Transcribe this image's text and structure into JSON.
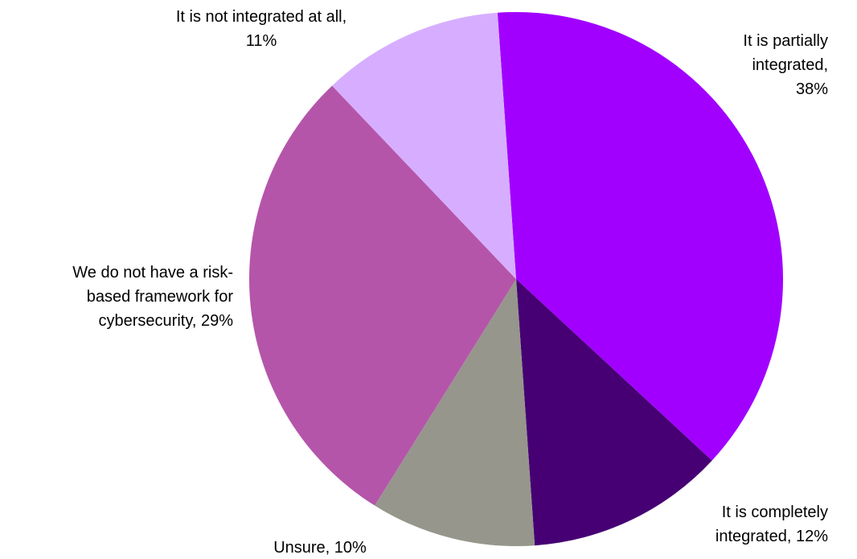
{
  "chart_data": {
    "type": "pie",
    "title": "",
    "slices": [
      {
        "label": "It is partially integrated",
        "value": 38,
        "color": "#A100FF"
      },
      {
        "label": "It is completely integrated",
        "value": 12,
        "color": "#460073"
      },
      {
        "label": "Unsure",
        "value": 10,
        "color": "#96968C"
      },
      {
        "label": "We do not have a risk-based framework for cybersecurity",
        "value": 29,
        "color": "#B455AA"
      },
      {
        "label": "It is not integrated at all",
        "value": 11,
        "color": "#D7AEFF"
      }
    ]
  },
  "labels": {
    "partial": {
      "line1": "It is partially",
      "line2": "integrated,",
      "line3": "38%"
    },
    "complete": {
      "line1": "It is completely",
      "line2": "integrated, 12%"
    },
    "unsure": {
      "line1": "Unsure, 10%"
    },
    "noframe": {
      "line1": "We do not have a risk-",
      "line2": "based framework for",
      "line3": "cybersecurity, 29%"
    },
    "notintegr": {
      "line1": "It is not integrated at all,",
      "line2": "11%"
    }
  }
}
